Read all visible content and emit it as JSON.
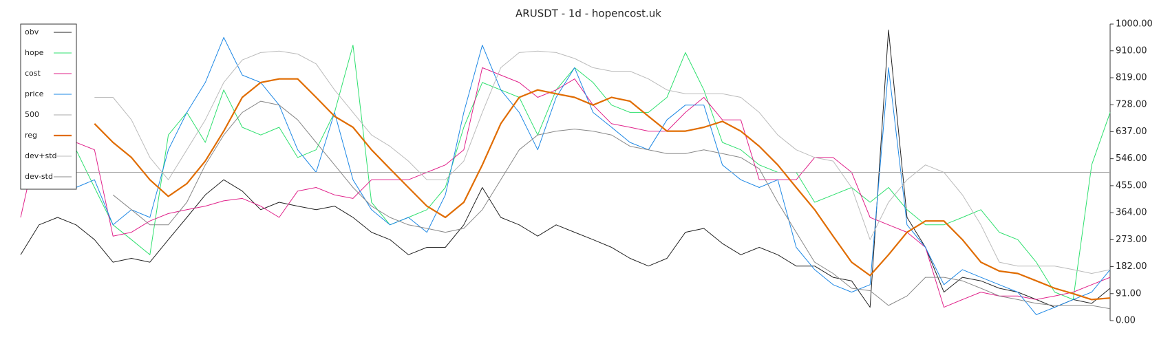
{
  "chart_data": {
    "type": "line",
    "title": "ARUSDT - 1d - hopencost.uk",
    "ylim": [
      0,
      1000
    ],
    "yticks": [
      {
        "value": 0,
        "label": "0.00"
      },
      {
        "value": 91,
        "label": "91.00"
      },
      {
        "value": 182,
        "label": "182.00"
      },
      {
        "value": 273,
        "label": "273.00"
      },
      {
        "value": 364,
        "label": "364.00"
      },
      {
        "value": 455,
        "label": "455.00"
      },
      {
        "value": 546,
        "label": "546.00"
      },
      {
        "value": 637,
        "label": "637.00"
      },
      {
        "value": 728,
        "label": "728.00"
      },
      {
        "value": 819,
        "label": "819.00"
      },
      {
        "value": 910,
        "label": "910.00"
      },
      {
        "value": 1000,
        "label": "1000.00"
      }
    ],
    "legend": "upper left",
    "series": [
      {
        "name": "obv",
        "color": "#222222",
        "width": 1,
        "values": [
          222,
          323,
          348,
          323,
          273,
          197,
          210,
          197,
          273,
          348,
          424,
          475,
          437,
          374,
          399,
          386,
          374,
          386,
          348,
          298,
          273,
          222,
          247,
          247,
          323,
          449,
          348,
          323,
          285,
          323,
          298,
          273,
          247,
          210,
          184,
          210,
          298,
          311,
          260,
          222,
          247,
          222,
          184,
          184,
          146,
          134,
          45,
          980,
          348,
          247,
          96,
          146,
          134,
          109,
          96,
          71,
          45,
          71,
          58,
          109
        ]
      },
      {
        "name": "hope",
        "color": "#2ee06e",
        "width": 1,
        "values": [
          null,
          null,
          null,
          576,
          449,
          323,
          273,
          222,
          626,
          702,
          601,
          778,
          652,
          626,
          652,
          550,
          576,
          702,
          929,
          399,
          323,
          348,
          374,
          449,
          652,
          803,
          778,
          753,
          626,
          778,
          853,
          803,
          727,
          702,
          702,
          753,
          904,
          778,
          601,
          576,
          525,
          500,
          500,
          399,
          424,
          449,
          399,
          449,
          374,
          323,
          323,
          348,
          374,
          298,
          273,
          197,
          96,
          71,
          525,
          702
        ]
      },
      {
        "name": "cost",
        "color": "#e0218a",
        "width": 1,
        "values": [
          348,
          626,
          626,
          601,
          576,
          285,
          298,
          336,
          361,
          374,
          386,
          404,
          412,
          386,
          348,
          437,
          449,
          424,
          412,
          475,
          475,
          475,
          500,
          525,
          576,
          853,
          828,
          803,
          753,
          778,
          815,
          727,
          664,
          652,
          639,
          639,
          702,
          753,
          677,
          677,
          475,
          475,
          475,
          550,
          550,
          500,
          348,
          323,
          298,
          247,
          45,
          71,
          96,
          83,
          83,
          71,
          83,
          96,
          121,
          146
        ]
      },
      {
        "name": "price",
        "color": "#1e88e5",
        "width": 1,
        "values": [
          601,
          576,
          525,
          449,
          475,
          323,
          374,
          348,
          576,
          702,
          803,
          955,
          828,
          803,
          727,
          576,
          500,
          702,
          475,
          374,
          323,
          348,
          298,
          424,
          702,
          929,
          778,
          702,
          576,
          753,
          853,
          702,
          652,
          601,
          576,
          677,
          727,
          727,
          525,
          475,
          449,
          475,
          247,
          172,
          121,
          96,
          121,
          853,
          323,
          247,
          121,
          172,
          146,
          121,
          96,
          20,
          45,
          71,
          96,
          172
        ]
      },
      {
        "name": "500",
        "color": "#aaaaaa",
        "width": 1,
        "values": [
          500,
          500,
          500,
          500,
          500,
          500,
          500,
          500,
          500,
          500,
          500,
          500,
          500,
          500,
          500,
          500,
          500,
          500,
          500,
          500,
          500,
          500,
          500,
          500,
          500,
          500,
          500,
          500,
          500,
          500,
          500,
          500,
          500,
          500,
          500,
          500,
          500,
          500,
          500,
          500,
          500,
          500,
          500,
          500,
          500,
          500,
          500,
          500,
          500,
          500,
          500,
          500,
          500,
          500,
          500,
          500,
          500,
          500,
          500,
          500
        ]
      },
      {
        "name": "reg",
        "color": "#e06c00",
        "width": 2.2,
        "values": [
          null,
          null,
          null,
          null,
          664,
          601,
          550,
          475,
          419,
          462,
          538,
          639,
          753,
          803,
          815,
          815,
          753,
          689,
          652,
          576,
          512,
          449,
          386,
          348,
          399,
          525,
          664,
          753,
          778,
          765,
          753,
          727,
          753,
          740,
          689,
          639,
          639,
          652,
          672,
          639,
          588,
          525,
          449,
          374,
          285,
          197,
          152,
          222,
          298,
          336,
          336,
          273,
          197,
          167,
          159,
          134,
          109,
          91,
          71,
          76
        ]
      },
      {
        "name": "dev+std",
        "color": "#bbbbbb",
        "width": 1,
        "values": [
          null,
          null,
          null,
          null,
          753,
          753,
          677,
          550,
          475,
          576,
          677,
          803,
          879,
          904,
          909,
          899,
          866,
          778,
          702,
          626,
          588,
          538,
          475,
          475,
          538,
          702,
          853,
          904,
          909,
          904,
          884,
          853,
          841,
          841,
          815,
          778,
          765,
          765,
          765,
          753,
          702,
          626,
          576,
          550,
          538,
          449,
          273,
          399,
          475,
          525,
          500,
          424,
          323,
          197,
          184,
          184,
          184,
          172,
          159,
          172
        ]
      },
      {
        "name": "dev-std",
        "color": "#888888",
        "width": 1,
        "values": [
          null,
          null,
          null,
          null,
          null,
          424,
          374,
          323,
          323,
          399,
          525,
          626,
          702,
          740,
          727,
          677,
          601,
          525,
          449,
          386,
          348,
          323,
          311,
          298,
          311,
          374,
          475,
          576,
          626,
          639,
          646,
          639,
          626,
          588,
          576,
          563,
          563,
          576,
          563,
          550,
          512,
          399,
          298,
          197,
          159,
          109,
          101,
          51,
          83,
          146,
          146,
          134,
          109,
          83,
          71,
          58,
          51,
          51,
          51,
          40
        ]
      }
    ]
  }
}
